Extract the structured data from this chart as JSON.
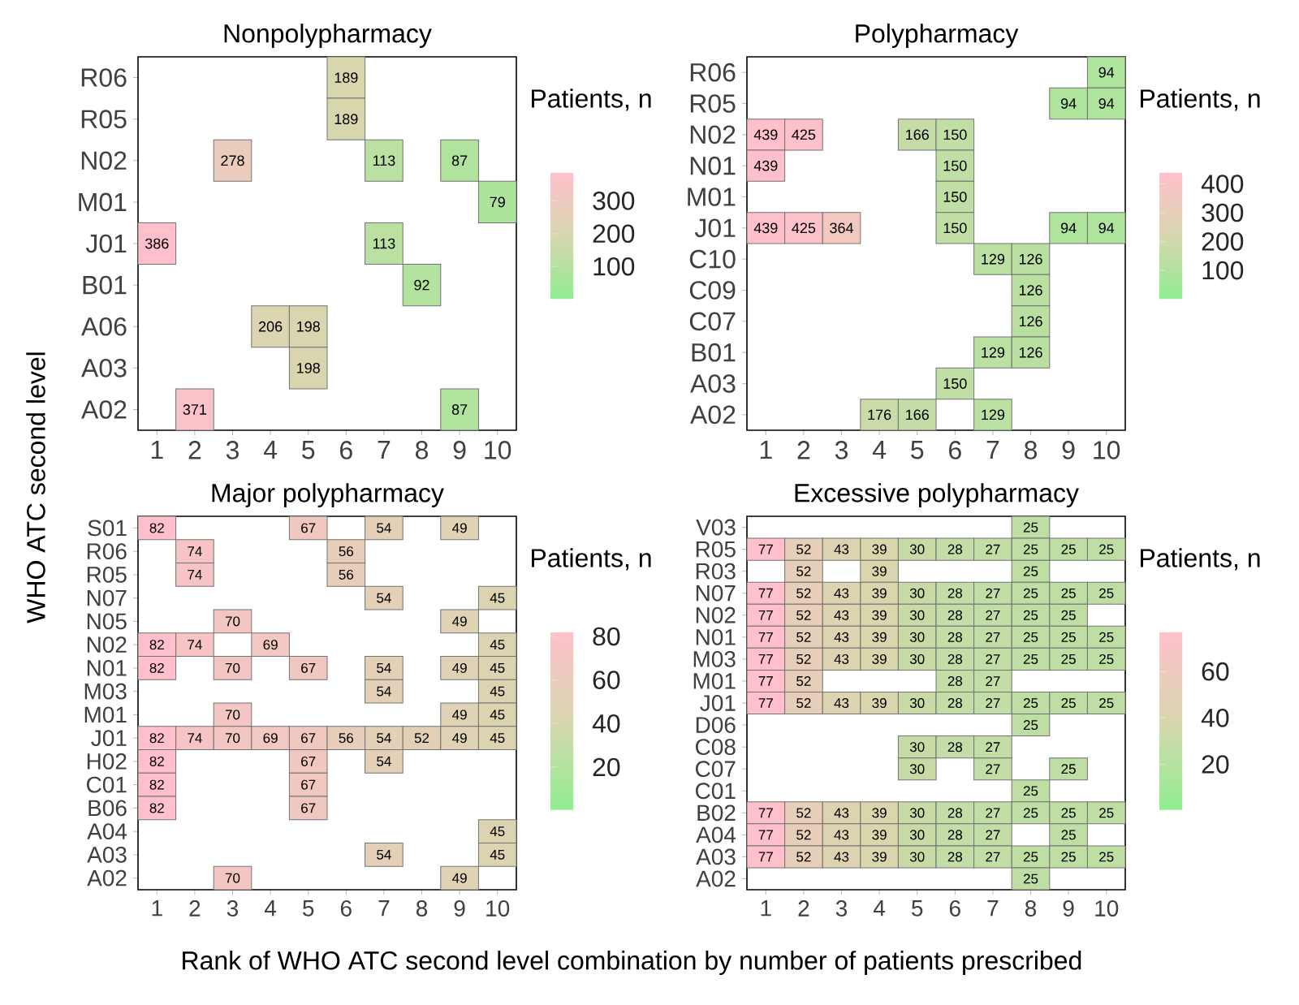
{
  "chart_data": [
    {
      "type": "heatmap",
      "title": "Nonpolypharmacy",
      "ylabel": "WHO ATC second level",
      "clabel": "Patients, n",
      "data_labels": true,
      "categories": [
        "1",
        "2",
        "3",
        "4",
        "5",
        "6",
        "7",
        "8",
        "9",
        "10"
      ],
      "y_categories": [
        "R06",
        "R05",
        "N02",
        "M01",
        "J01",
        "B01",
        "A06",
        "A03",
        "A02"
      ],
      "cells": [
        [
          null,
          null,
          null,
          null,
          null,
          189,
          null,
          null,
          null,
          null
        ],
        [
          null,
          null,
          null,
          null,
          null,
          189,
          null,
          null,
          null,
          null
        ],
        [
          null,
          null,
          278,
          null,
          null,
          null,
          113,
          null,
          87,
          null
        ],
        [
          null,
          null,
          null,
          null,
          null,
          null,
          null,
          null,
          null,
          79
        ],
        [
          386,
          null,
          null,
          null,
          null,
          null,
          113,
          null,
          null,
          null
        ],
        [
          null,
          null,
          null,
          null,
          null,
          null,
          null,
          92,
          null,
          null
        ],
        [
          null,
          null,
          null,
          206,
          198,
          null,
          null,
          null,
          null,
          null
        ],
        [
          null,
          null,
          null,
          null,
          198,
          null,
          null,
          null,
          null,
          null
        ],
        [
          null,
          371,
          null,
          null,
          null,
          null,
          null,
          null,
          87,
          null
        ]
      ],
      "clim": [
        0,
        386
      ],
      "cticks": [
        100,
        200,
        300
      ]
    },
    {
      "type": "heatmap",
      "title": "Polypharmacy",
      "clabel": "Patients, n",
      "data_labels": true,
      "categories": [
        "1",
        "2",
        "3",
        "4",
        "5",
        "6",
        "7",
        "8",
        "9",
        "10"
      ],
      "y_categories": [
        "R06",
        "R05",
        "N02",
        "N01",
        "M01",
        "J01",
        "C10",
        "C09",
        "C07",
        "B01",
        "A03",
        "A02"
      ],
      "cells": [
        [
          null,
          null,
          null,
          null,
          null,
          null,
          null,
          null,
          null,
          94
        ],
        [
          null,
          null,
          null,
          null,
          null,
          null,
          null,
          null,
          94,
          94
        ],
        [
          439,
          425,
          null,
          null,
          166,
          150,
          null,
          null,
          null,
          null
        ],
        [
          439,
          null,
          null,
          null,
          null,
          150,
          null,
          null,
          null,
          null
        ],
        [
          null,
          null,
          null,
          null,
          null,
          150,
          null,
          null,
          null,
          null
        ],
        [
          439,
          425,
          364,
          null,
          null,
          150,
          null,
          null,
          94,
          94
        ],
        [
          null,
          null,
          null,
          null,
          null,
          null,
          129,
          126,
          null,
          null
        ],
        [
          null,
          null,
          null,
          null,
          null,
          null,
          null,
          126,
          null,
          null
        ],
        [
          null,
          null,
          null,
          null,
          null,
          null,
          null,
          126,
          null,
          null
        ],
        [
          null,
          null,
          null,
          null,
          null,
          null,
          129,
          126,
          null,
          null
        ],
        [
          null,
          null,
          null,
          null,
          null,
          150,
          null,
          null,
          null,
          null
        ],
        [
          null,
          null,
          null,
          176,
          166,
          null,
          129,
          null,
          null,
          null
        ]
      ],
      "clim": [
        0,
        439
      ],
      "cticks": [
        100,
        200,
        300,
        400
      ]
    },
    {
      "type": "heatmap",
      "title": "Major polypharmacy",
      "xlabel": "Rank of WHO ATC second level combination by number of patients prescribed",
      "clabel": "Patients, n",
      "data_labels": true,
      "categories": [
        "1",
        "2",
        "3",
        "4",
        "5",
        "6",
        "7",
        "8",
        "9",
        "10"
      ],
      "y_categories": [
        "S01",
        "R06",
        "R05",
        "N07",
        "N05",
        "N02",
        "N01",
        "M03",
        "M01",
        "J01",
        "H02",
        "C01",
        "B06",
        "A04",
        "A03",
        "A02"
      ],
      "cells": [
        [
          82,
          null,
          null,
          null,
          67,
          null,
          54,
          null,
          49,
          null
        ],
        [
          null,
          74,
          null,
          null,
          null,
          56,
          null,
          null,
          null,
          null
        ],
        [
          null,
          74,
          null,
          null,
          null,
          56,
          null,
          null,
          null,
          null
        ],
        [
          null,
          null,
          null,
          null,
          null,
          null,
          54,
          null,
          null,
          45
        ],
        [
          null,
          null,
          70,
          null,
          null,
          null,
          null,
          null,
          49,
          null
        ],
        [
          82,
          74,
          null,
          69,
          null,
          null,
          null,
          null,
          null,
          45
        ],
        [
          82,
          null,
          70,
          null,
          67,
          null,
          54,
          null,
          49,
          45
        ],
        [
          null,
          null,
          null,
          null,
          null,
          null,
          54,
          null,
          null,
          45
        ],
        [
          null,
          null,
          70,
          null,
          null,
          null,
          null,
          null,
          49,
          45
        ],
        [
          82,
          74,
          70,
          69,
          67,
          56,
          54,
          52,
          49,
          45
        ],
        [
          82,
          null,
          null,
          null,
          67,
          null,
          54,
          null,
          null,
          null
        ],
        [
          82,
          null,
          null,
          null,
          67,
          null,
          null,
          null,
          null,
          null
        ],
        [
          82,
          null,
          null,
          null,
          67,
          null,
          null,
          null,
          null,
          null
        ],
        [
          null,
          null,
          null,
          null,
          null,
          null,
          null,
          null,
          null,
          45
        ],
        [
          null,
          null,
          null,
          null,
          null,
          null,
          54,
          null,
          null,
          45
        ],
        [
          null,
          null,
          70,
          null,
          null,
          null,
          null,
          null,
          49,
          null
        ]
      ],
      "clim": [
        0,
        82
      ],
      "cticks": [
        20,
        40,
        60,
        80
      ]
    },
    {
      "type": "heatmap",
      "title": "Excessive polypharmacy",
      "clabel": "Patients, n",
      "data_labels": true,
      "categories": [
        "1",
        "2",
        "3",
        "4",
        "5",
        "6",
        "7",
        "8",
        "9",
        "10"
      ],
      "y_categories": [
        "V03",
        "R05",
        "R03",
        "N07",
        "N02",
        "N01",
        "M03",
        "M01",
        "J01",
        "D06",
        "C08",
        "C07",
        "C01",
        "B02",
        "A04",
        "A03",
        "A02"
      ],
      "cells": [
        [
          null,
          null,
          null,
          null,
          null,
          null,
          null,
          25,
          null,
          null
        ],
        [
          77,
          52,
          43,
          39,
          30,
          28,
          27,
          25,
          25,
          25
        ],
        [
          null,
          52,
          null,
          39,
          null,
          null,
          null,
          25,
          null,
          null
        ],
        [
          77,
          52,
          43,
          39,
          30,
          28,
          27,
          25,
          25,
          25
        ],
        [
          77,
          52,
          43,
          39,
          30,
          28,
          27,
          25,
          25,
          null
        ],
        [
          77,
          52,
          43,
          39,
          30,
          28,
          27,
          25,
          25,
          25
        ],
        [
          77,
          52,
          43,
          39,
          30,
          28,
          27,
          25,
          25,
          25
        ],
        [
          77,
          52,
          null,
          null,
          null,
          28,
          27,
          null,
          null,
          null
        ],
        [
          77,
          52,
          43,
          39,
          30,
          28,
          27,
          25,
          25,
          25
        ],
        [
          null,
          null,
          null,
          null,
          null,
          null,
          null,
          25,
          null,
          null
        ],
        [
          null,
          null,
          null,
          null,
          30,
          28,
          27,
          null,
          null,
          null
        ],
        [
          null,
          null,
          null,
          null,
          30,
          null,
          27,
          null,
          25,
          null
        ],
        [
          null,
          null,
          null,
          null,
          null,
          null,
          null,
          25,
          null,
          null
        ],
        [
          77,
          52,
          43,
          39,
          30,
          28,
          27,
          25,
          25,
          25
        ],
        [
          77,
          52,
          43,
          39,
          30,
          28,
          27,
          null,
          25,
          null
        ],
        [
          77,
          52,
          43,
          39,
          30,
          28,
          27,
          25,
          25,
          25
        ],
        [
          null,
          null,
          null,
          null,
          null,
          null,
          null,
          25,
          null,
          null
        ]
      ],
      "clim": [
        0,
        77
      ],
      "cticks": [
        20,
        40,
        60
      ]
    }
  ]
}
